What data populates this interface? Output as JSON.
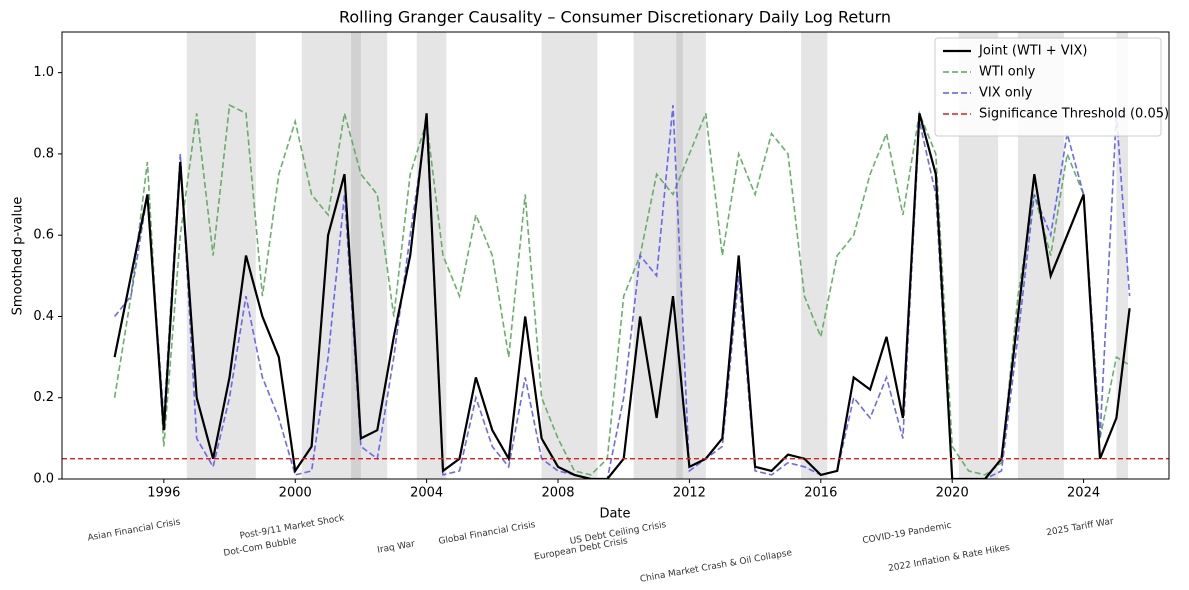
{
  "chart_data": {
    "type": "line",
    "title": "Rolling Granger Causality – Consumer Discretionary Daily Log Return",
    "xlabel": "Date",
    "ylabel": "Smoothed p-value",
    "x": [
      1994.5,
      1995,
      1995.5,
      1996,
      1996.5,
      1997,
      1997.5,
      1998,
      1998.5,
      1999,
      1999.5,
      2000,
      2000.5,
      2001,
      2001.5,
      2002,
      2002.5,
      2003,
      2003.5,
      2004,
      2004.5,
      2005,
      2005.5,
      2006,
      2006.5,
      2007,
      2007.5,
      2008,
      2008.5,
      2009,
      2009.5,
      2010,
      2010.5,
      2011,
      2011.5,
      2012,
      2012.5,
      2013,
      2013.5,
      2014,
      2014.5,
      2015,
      2015.5,
      2016,
      2016.5,
      2017,
      2017.5,
      2018,
      2018.5,
      2019,
      2019.5,
      2020,
      2020.5,
      2021,
      2021.5,
      2022,
      2022.5,
      2023,
      2023.5,
      2024,
      2024.5,
      2025,
      2025.4
    ],
    "series": [
      {
        "name": "Joint (WTI + VIX)",
        "color": "#000000",
        "style": "solid",
        "values": [
          0.3,
          0.5,
          0.7,
          0.12,
          0.78,
          0.2,
          0.05,
          0.25,
          0.55,
          0.4,
          0.3,
          0.02,
          0.08,
          0.6,
          0.75,
          0.1,
          0.12,
          0.35,
          0.55,
          0.9,
          0.02,
          0.05,
          0.25,
          0.12,
          0.05,
          0.4,
          0.1,
          0.03,
          0.01,
          0.0,
          0.0,
          0.05,
          0.4,
          0.15,
          0.45,
          0.03,
          0.05,
          0.1,
          0.55,
          0.03,
          0.02,
          0.06,
          0.05,
          0.01,
          0.02,
          0.25,
          0.22,
          0.35,
          0.15,
          0.9,
          0.75,
          0.0,
          0.0,
          0.0,
          0.05,
          0.4,
          0.75,
          0.5,
          0.6,
          0.7,
          0.05,
          0.15,
          0.42
        ]
      },
      {
        "name": "WTI only",
        "color": "#59a95a",
        "style": "dashed",
        "values": [
          0.2,
          0.45,
          0.78,
          0.08,
          0.6,
          0.9,
          0.55,
          0.92,
          0.9,
          0.45,
          0.75,
          0.88,
          0.7,
          0.65,
          0.9,
          0.75,
          0.7,
          0.4,
          0.75,
          0.88,
          0.55,
          0.45,
          0.65,
          0.55,
          0.3,
          0.7,
          0.2,
          0.1,
          0.02,
          0.01,
          0.05,
          0.45,
          0.55,
          0.75,
          0.7,
          0.8,
          0.9,
          0.55,
          0.8,
          0.7,
          0.85,
          0.8,
          0.45,
          0.35,
          0.55,
          0.6,
          0.75,
          0.85,
          0.65,
          0.9,
          0.8,
          0.08,
          0.02,
          0.01,
          0.04,
          0.45,
          0.7,
          0.55,
          0.8,
          0.7,
          0.1,
          0.3,
          0.28
        ]
      },
      {
        "name": "VIX only",
        "color": "#5a5af0",
        "style": "dashed",
        "values": [
          0.4,
          0.45,
          0.7,
          0.15,
          0.8,
          0.1,
          0.03,
          0.2,
          0.45,
          0.25,
          0.15,
          0.01,
          0.02,
          0.3,
          0.7,
          0.08,
          0.05,
          0.3,
          0.6,
          0.88,
          0.01,
          0.02,
          0.2,
          0.08,
          0.03,
          0.25,
          0.05,
          0.02,
          0.01,
          0.0,
          0.0,
          0.2,
          0.55,
          0.5,
          0.92,
          0.02,
          0.05,
          0.08,
          0.5,
          0.02,
          0.01,
          0.04,
          0.03,
          0.01,
          0.02,
          0.2,
          0.15,
          0.25,
          0.1,
          0.88,
          0.7,
          0.0,
          0.0,
          0.0,
          0.02,
          0.35,
          0.7,
          0.6,
          0.85,
          0.7,
          0.1,
          0.9,
          0.45
        ]
      }
    ],
    "threshold": {
      "name": "Significance Threshold (0.05)",
      "value": 0.05,
      "color": "#e41a1c"
    },
    "events": [
      {
        "label": "Asian Financial Crisis",
        "start": 1996.7,
        "end": 1998.8
      },
      {
        "label": "Dot-Com Bubble",
        "start": 2000.2,
        "end": 2002.8
      },
      {
        "label": "Post-9/11 Market Shock",
        "start": 2001.7,
        "end": 2002.0
      },
      {
        "label": "Iraq War",
        "start": 2003.7,
        "end": 2004.6
      },
      {
        "label": "Global Financial Crisis",
        "start": 2007.5,
        "end": 2009.2
      },
      {
        "label": "European Debt Crisis",
        "start": 2010.3,
        "end": 2012.5
      },
      {
        "label": "US Debt Ceiling Crisis",
        "start": 2011.6,
        "end": 2011.8
      },
      {
        "label": "China Market Crash & Oil Collapse",
        "start": 2015.4,
        "end": 2016.2
      },
      {
        "label": "COVID-19 Pandemic",
        "start": 2020.2,
        "end": 2021.4
      },
      {
        "label": "2022 Inflation & Rate Hikes",
        "start": 2022.0,
        "end": 2023.4
      },
      {
        "label": "2025 Tariff War",
        "start": 2025.0,
        "end": 2025.35
      }
    ],
    "xlim": [
      1992.9,
      2026.6
    ],
    "xticks": [
      1996,
      2000,
      2004,
      2008,
      2012,
      2016,
      2020,
      2024
    ],
    "ylim": [
      0,
      1.1
    ],
    "yticks": [
      {
        "value": 0,
        "label": "0.0"
      },
      {
        "value": 0.2,
        "label": "0.2"
      },
      {
        "value": 0.4,
        "label": "0.4"
      },
      {
        "value": 0.6,
        "label": "0.6"
      },
      {
        "value": 0.8,
        "label": "0.8"
      },
      {
        "value": 1.0,
        "label": "1.0"
      }
    ],
    "legend": "upper right"
  }
}
